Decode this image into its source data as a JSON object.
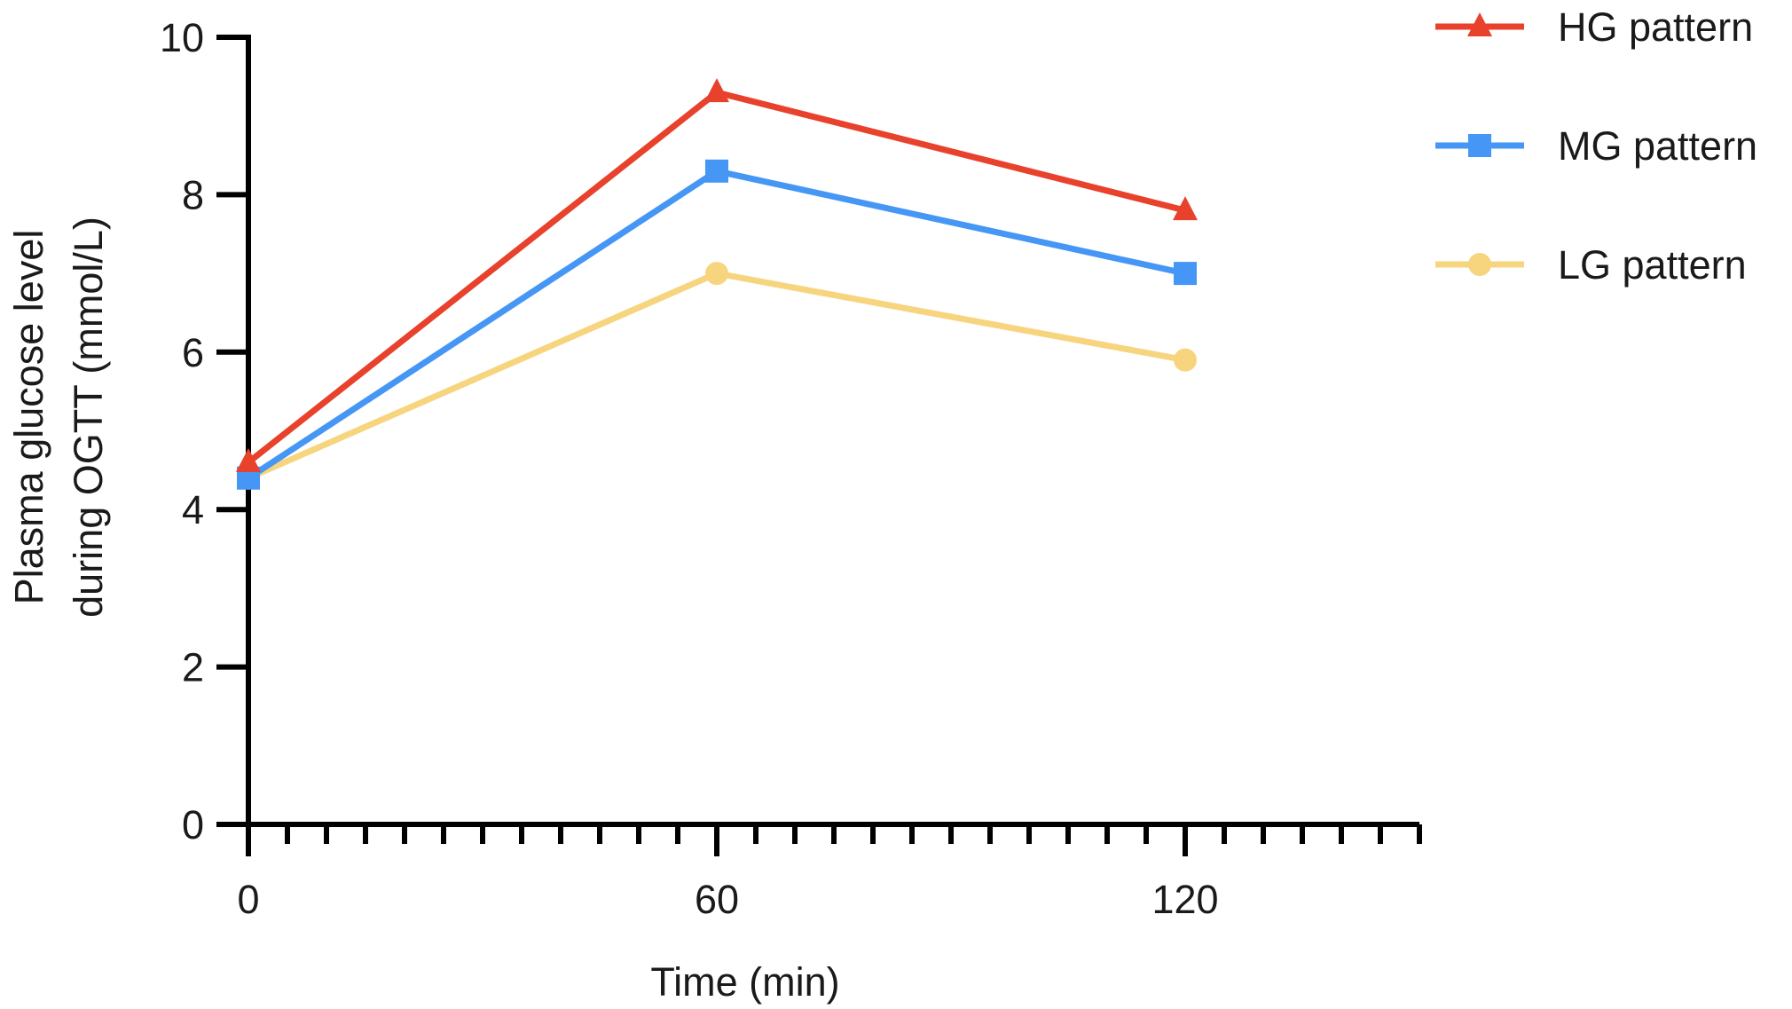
{
  "chart_data": {
    "type": "line",
    "title": "",
    "xlabel": "Time (min)",
    "ylabel_lines": [
      "Plasma glucose level",
      "during OGTT (mmol/L)"
    ],
    "x": [
      0,
      60,
      120
    ],
    "xlim": [
      0,
      150
    ],
    "x_ticks": [
      0,
      60,
      120
    ],
    "x_minor_step": 5,
    "ylim": [
      0,
      10
    ],
    "y_ticks": [
      0,
      2,
      4,
      6,
      8,
      10
    ],
    "grid": false,
    "legend_position": "top-right",
    "series": [
      {
        "name": "HG pattern",
        "marker": "triangle",
        "color": "#e8412c",
        "values": [
          4.6,
          9.3,
          7.8
        ]
      },
      {
        "name": "MG pattern",
        "marker": "square",
        "color": "#4596f5",
        "values": [
          4.4,
          8.3,
          7.0
        ]
      },
      {
        "name": "LG pattern",
        "marker": "circle",
        "color": "#f7d47e",
        "values": [
          4.4,
          7.0,
          5.9
        ]
      }
    ]
  }
}
